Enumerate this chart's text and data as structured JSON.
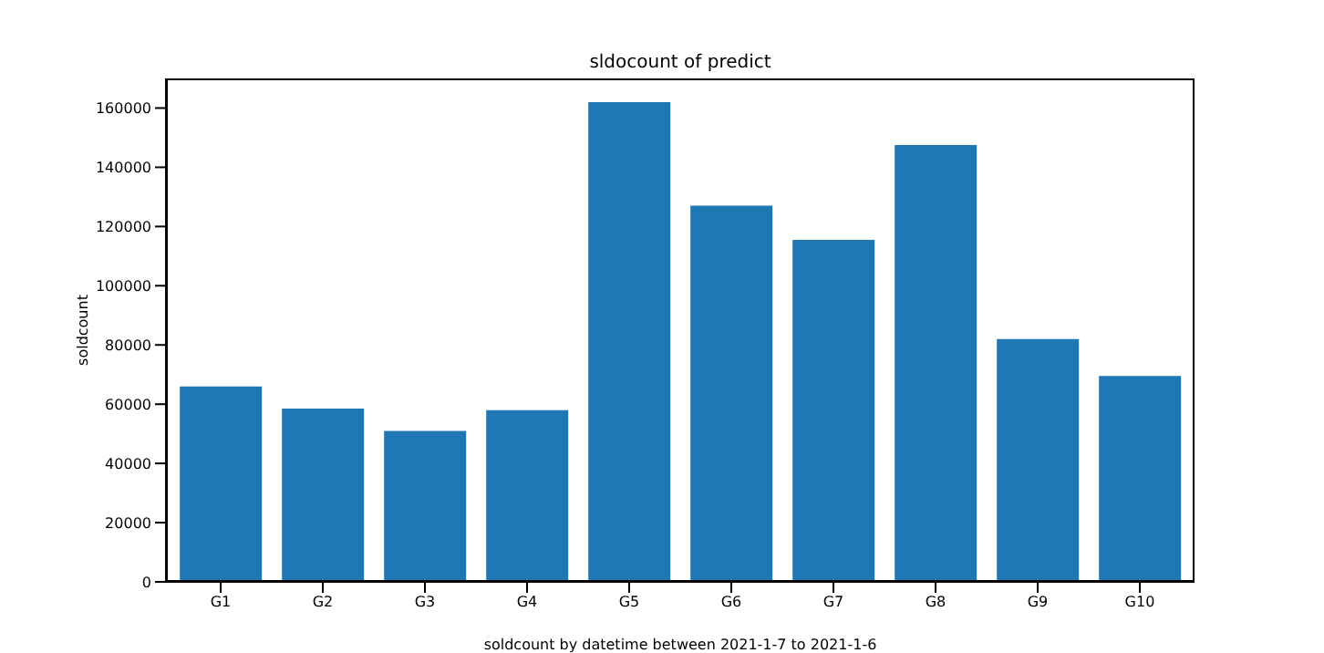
{
  "chart_data": {
    "type": "bar",
    "title": "sldocount of predict",
    "xlabel": "soldcount by datetime between 2021-1-7 to 2021-1-6",
    "ylabel": "soldcount",
    "categories": [
      "G1",
      "G2",
      "G3",
      "G4",
      "G5",
      "G6",
      "G7",
      "G8",
      "G9",
      "G10"
    ],
    "values": [
      66000,
      58500,
      51000,
      58000,
      162000,
      127000,
      115500,
      147500,
      82000,
      69500
    ],
    "color": "#1f77b4",
    "ylim": [
      0,
      170000
    ],
    "yticks": [
      0,
      20000,
      40000,
      60000,
      80000,
      100000,
      120000,
      140000,
      160000
    ],
    "grid": false
  }
}
